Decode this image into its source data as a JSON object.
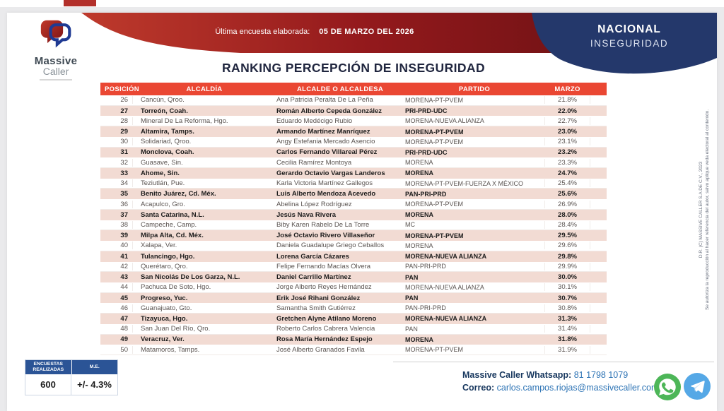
{
  "logo": {
    "line1": "Massive",
    "line2": "Caller"
  },
  "top_banner": {
    "survey_label": "Última encuesta elaborada:",
    "survey_date": "05 DE MARZO DEL 2026",
    "region": "NACIONAL",
    "topic": "INSEGURIDAD"
  },
  "title": "RANKING PERCEPCIÓN DE INSEGURIDAD",
  "table": {
    "columns": [
      "POSICIÓN",
      "ALCALDÍA",
      "ALCALDE O ALCALDESA",
      "PARTIDO",
      "MARZO"
    ],
    "rows": [
      {
        "pos": "26",
        "alcaldia": "Cancún, Qroo.",
        "alcalde": "Ana Patricia Peralta De La Peña",
        "partido": "MORENA-PT-PVEM",
        "marzo": "21.8%",
        "hl": false
      },
      {
        "pos": "27",
        "alcaldia": "Torreón, Coah.",
        "alcalde": "Román Alberto Cepeda González",
        "partido": "PRI-PRD-UDC",
        "marzo": "22.0%",
        "hl": true
      },
      {
        "pos": "28",
        "alcaldia": "Mineral De La Reforma, Hgo.",
        "alcalde": "Eduardo Medécigo Rubio",
        "partido": "MORENA-NUEVA ALIANZA",
        "marzo": "22.7%",
        "hl": false
      },
      {
        "pos": "29",
        "alcaldia": "Altamira, Tamps.",
        "alcalde": "Armando Martínez Manríquez",
        "partido": "MORENA-PT-PVEM",
        "marzo": "23.0%",
        "hl": true
      },
      {
        "pos": "30",
        "alcaldia": "Solidariad, Qroo.",
        "alcalde": "Angy Estefania Mercado Asencio",
        "partido": "MORENA-PT-PVEM",
        "marzo": "23.1%",
        "hl": false
      },
      {
        "pos": "31",
        "alcaldia": "Monclova, Coah.",
        "alcalde": "Carlos Fernando Villareal Pérez",
        "partido": "PRI-PRD-UDC",
        "marzo": "23.2%",
        "hl": true
      },
      {
        "pos": "32",
        "alcaldia": "Guasave, Sin.",
        "alcalde": "Cecilia Ramírez Montoya",
        "partido": "MORENA",
        "marzo": "23.3%",
        "hl": false
      },
      {
        "pos": "33",
        "alcaldia": "Ahome, Sin.",
        "alcalde": "Gerardo Octavio Vargas Landeros",
        "partido": "MORENA",
        "marzo": "24.7%",
        "hl": true
      },
      {
        "pos": "34",
        "alcaldia": "Teziutlán, Pue.",
        "alcalde": "Karla Victoria Martínez Gallegos",
        "partido": "MORENA-PT-PVEM-FUERZA X MÉXICO",
        "marzo": "25.4%",
        "hl": false
      },
      {
        "pos": "35",
        "alcaldia": "Benito Juárez, Cd. Méx.",
        "alcalde": "Luis Alberto Mendoza Acevedo",
        "partido": "PAN-PRI-PRD",
        "marzo": "25.6%",
        "hl": true
      },
      {
        "pos": "36",
        "alcaldia": "Acapulco, Gro.",
        "alcalde": "Abelina López Rodríguez",
        "partido": "MORENA-PT-PVEM",
        "marzo": "26.9%",
        "hl": false
      },
      {
        "pos": "37",
        "alcaldia": "Santa Catarina, N.L.",
        "alcalde": "Jesús Nava Rivera",
        "partido": "MORENA",
        "marzo": "28.0%",
        "hl": true
      },
      {
        "pos": "38",
        "alcaldia": "Campeche, Camp.",
        "alcalde": "Biby Karen Rabelo De La Torre",
        "partido": "MC",
        "marzo": "28.4%",
        "hl": false
      },
      {
        "pos": "39",
        "alcaldia": "Milpa Alta, Cd. Méx.",
        "alcalde": "José Octavio Rivero Villaseñor",
        "partido": "MORENA-PT-PVEM",
        "marzo": "29.5%",
        "hl": true
      },
      {
        "pos": "40",
        "alcaldia": "Xalapa, Ver.",
        "alcalde": "Daniela Guadalupe Griego Ceballos",
        "partido": "MORENA",
        "marzo": "29.6%",
        "hl": false
      },
      {
        "pos": "41",
        "alcaldia": "Tulancingo, Hgo.",
        "alcalde": "Lorena García Cázares",
        "partido": "MORENA-NUEVA ALIANZA",
        "marzo": "29.8%",
        "hl": true
      },
      {
        "pos": "42",
        "alcaldia": "Querétaro, Qro.",
        "alcalde": "Felipe Fernando Macías Olvera",
        "partido": "PAN-PRI-PRD",
        "marzo": "29.9%",
        "hl": false
      },
      {
        "pos": "43",
        "alcaldia": "San Nicolás De Los Garza, N.L.",
        "alcalde": "Daniel Carrillo Martínez",
        "partido": "PAN",
        "marzo": "30.0%",
        "hl": true
      },
      {
        "pos": "44",
        "alcaldia": "Pachuca De Soto, Hgo.",
        "alcalde": "Jorge Alberto Reyes Hernández",
        "partido": "MORENA-NUEVA ALIANZA",
        "marzo": "30.1%",
        "hl": false
      },
      {
        "pos": "45",
        "alcaldia": "Progreso, Yuc.",
        "alcalde": "Erik José Rihani González",
        "partido": "PAN",
        "marzo": "30.7%",
        "hl": true
      },
      {
        "pos": "46",
        "alcaldia": "Guanajuato, Gto.",
        "alcalde": "Samantha Smith Gutiérrez",
        "partido": "PAN-PRI-PRD",
        "marzo": "30.8%",
        "hl": false
      },
      {
        "pos": "47",
        "alcaldia": "Tizayuca, Hgo.",
        "alcalde": "Gretchen Alyne Atilano Moreno",
        "partido": "MORENA-NUEVA ALIANZA",
        "marzo": "31.3%",
        "hl": true
      },
      {
        "pos": "48",
        "alcaldia": "San Juan Del Río, Qro.",
        "alcalde": "Roberto Carlos Cabrera Valencia",
        "partido": "PAN",
        "marzo": "31.4%",
        "hl": false
      },
      {
        "pos": "49",
        "alcaldia": "Veracruz, Ver.",
        "alcalde": "Rosa María Hernández Espejo",
        "partido": "MORENA",
        "marzo": "31.8%",
        "hl": true
      },
      {
        "pos": "50",
        "alcaldia": "Matamoros, Tamps.",
        "alcalde": "José Alberto Granados Favila",
        "partido": "MORENA-PT-PVEM",
        "marzo": "31.9%",
        "hl": false
      }
    ]
  },
  "stats_box": {
    "col1_header": "ENCUESTAS REALIZADAS",
    "col2_header": "M.E.",
    "col1_value": "600",
    "col2_value": "+/- 4.3%"
  },
  "footer": {
    "whatsapp_label": "Massive Caller Whatsapp:",
    "whatsapp_number": "81 1798 1079",
    "email_label": "Correo:",
    "email": "carlos.campos.riojas@massivecaller.com"
  },
  "side_note": {
    "line1": "D.R. (C) MASSIVE CALLER S.A DE C.V.,  2023",
    "line2": "Se autoriza la reproducción al hacer referencia del autor, salvo aplique veda electoral al contenido."
  },
  "colors": {
    "header_red": "#ea4733",
    "ribbon_red_light": "#be3a2c",
    "ribbon_red_dark": "#5f0f11",
    "ribbon_blue": "#24386b",
    "row_pink": "#f2dbd3",
    "stats_blue": "#2b5496",
    "link_blue": "#2e74b5",
    "label_navy": "#17375e",
    "whatsapp_green": "#4db658",
    "telegram_blue": "#55a8e6"
  }
}
